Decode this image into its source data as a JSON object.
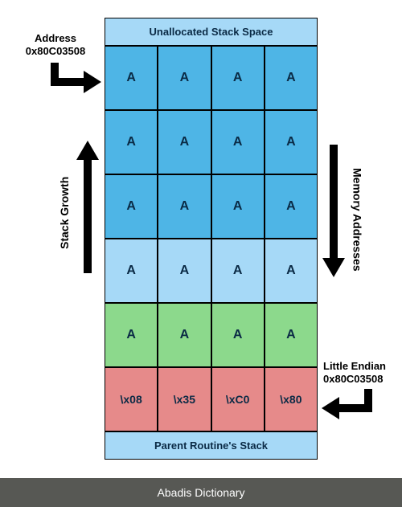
{
  "diagram": {
    "header": {
      "text": "Unallocated Stack Space",
      "bg": "#a6d9f7"
    },
    "footer": {
      "text": "Parent Routine's Stack",
      "bg": "#a6d9f7"
    },
    "rows": [
      {
        "bg": "#4eb5e6",
        "cells": [
          "A",
          "A",
          "A",
          "A"
        ]
      },
      {
        "bg": "#4eb5e6",
        "cells": [
          "A",
          "A",
          "A",
          "A"
        ]
      },
      {
        "bg": "#4eb5e6",
        "cells": [
          "A",
          "A",
          "A",
          "A"
        ]
      },
      {
        "bg": "#a6d9f7",
        "cells": [
          "A",
          "A",
          "A",
          "A"
        ]
      },
      {
        "bg": "#8cd98c",
        "cells": [
          "A",
          "A",
          "A",
          "A"
        ]
      },
      {
        "bg": "#e68a8a",
        "cells": [
          "\\x08",
          "\\x35",
          "\\xC0",
          "\\x80"
        ]
      }
    ]
  },
  "labels": {
    "address_top": "Address",
    "address_hex": "0x80C03508",
    "stack_growth": "Stack Growth",
    "memory_addresses": "Memory Addresses",
    "little_endian": "Little Endian",
    "little_hex": "0x80C03508"
  },
  "caption": "Abadis Dictionary",
  "colors": {
    "cell_border": "#000000",
    "arrow": "#000000",
    "caption_bg": "#575854"
  }
}
